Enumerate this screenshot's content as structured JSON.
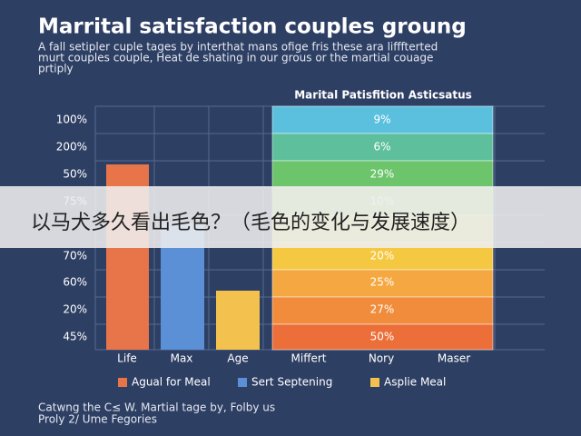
{
  "title": "Marrital satisfaction couples groung",
  "subtitle": [
    "A fall setipler cuple tages by interthat mans ofige fris these ara lifffterted",
    "murt couples couple, Heat de shating in our grous or the martial couage",
    "prtiply"
  ],
  "panel_title": "Marital Patisfition Asticsatus",
  "axis_labels": [
    "100%",
    "200%",
    "50%",
    "75%",
    "70%",
    "60%",
    "20%",
    "45%"
  ],
  "categories": [
    "Life",
    "Max",
    "Age",
    "Miffert",
    "Nory",
    "Maser"
  ],
  "segment_labels": [
    "9%",
    "6%",
    "29%",
    "10%",
    "20%",
    "25%",
    "27%",
    "50%"
  ],
  "legend": [
    "Agual for Meal",
    "Sert Septening",
    "Asplie Meal"
  ],
  "footer": [
    "Catwng the C≤ W. Martial tage by, Folby us",
    "Proly 2/ Ume Fegories"
  ],
  "banner": "以马犬多久看出毛色？（毛色的变化与发展速度）"
}
